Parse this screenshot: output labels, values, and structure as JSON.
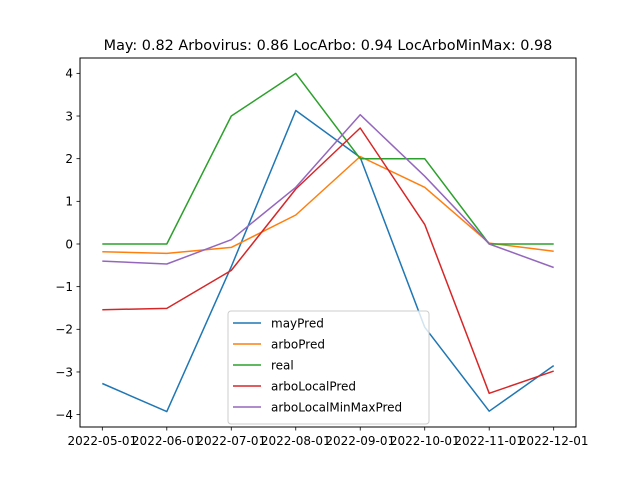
{
  "chart_data": {
    "type": "line",
    "title": "May: 0.82    Arbovirus: 0.86   LocArbo: 0.94   LocArboMinMax: 0.98",
    "xlabel": "",
    "ylabel": "",
    "x": [
      "2022-05-01",
      "2022-06-01",
      "2022-07-01",
      "2022-08-01",
      "2022-09-01",
      "2022-10-01",
      "2022-11-01",
      "2022-12-01"
    ],
    "ylim": [
      -4.29,
      4.36
    ],
    "yticks": [
      "−4",
      "−3",
      "−2",
      "−1",
      "0",
      "1",
      "2",
      "3",
      "4"
    ],
    "ytick_values": [
      -4,
      -3,
      -2,
      -1,
      0,
      1,
      2,
      3,
      4
    ],
    "grid": false,
    "legend_position": "lower center",
    "series": [
      {
        "name": "mayPred",
        "color": "#1f77b4",
        "values": [
          -3.27,
          -3.93,
          -0.53,
          3.13,
          2.03,
          -1.95,
          -3.92,
          -2.85
        ]
      },
      {
        "name": "arboPred",
        "color": "#ff7f0e",
        "values": [
          -0.18,
          -0.22,
          -0.08,
          0.68,
          2.05,
          1.33,
          0.02,
          -0.17
        ]
      },
      {
        "name": "real",
        "color": "#2ca02c",
        "values": [
          0,
          0,
          3,
          4,
          2,
          2,
          0,
          0
        ]
      },
      {
        "name": "arboLocalPred",
        "color": "#d62728",
        "values": [
          -1.54,
          -1.51,
          -0.62,
          1.29,
          2.72,
          0.46,
          -3.5,
          -2.98
        ]
      },
      {
        "name": "arboLocalMinMaxPred",
        "color": "#9467bd",
        "values": [
          -0.4,
          -0.47,
          0.1,
          1.33,
          3.03,
          1.59,
          0.0,
          -0.55
        ]
      }
    ]
  }
}
